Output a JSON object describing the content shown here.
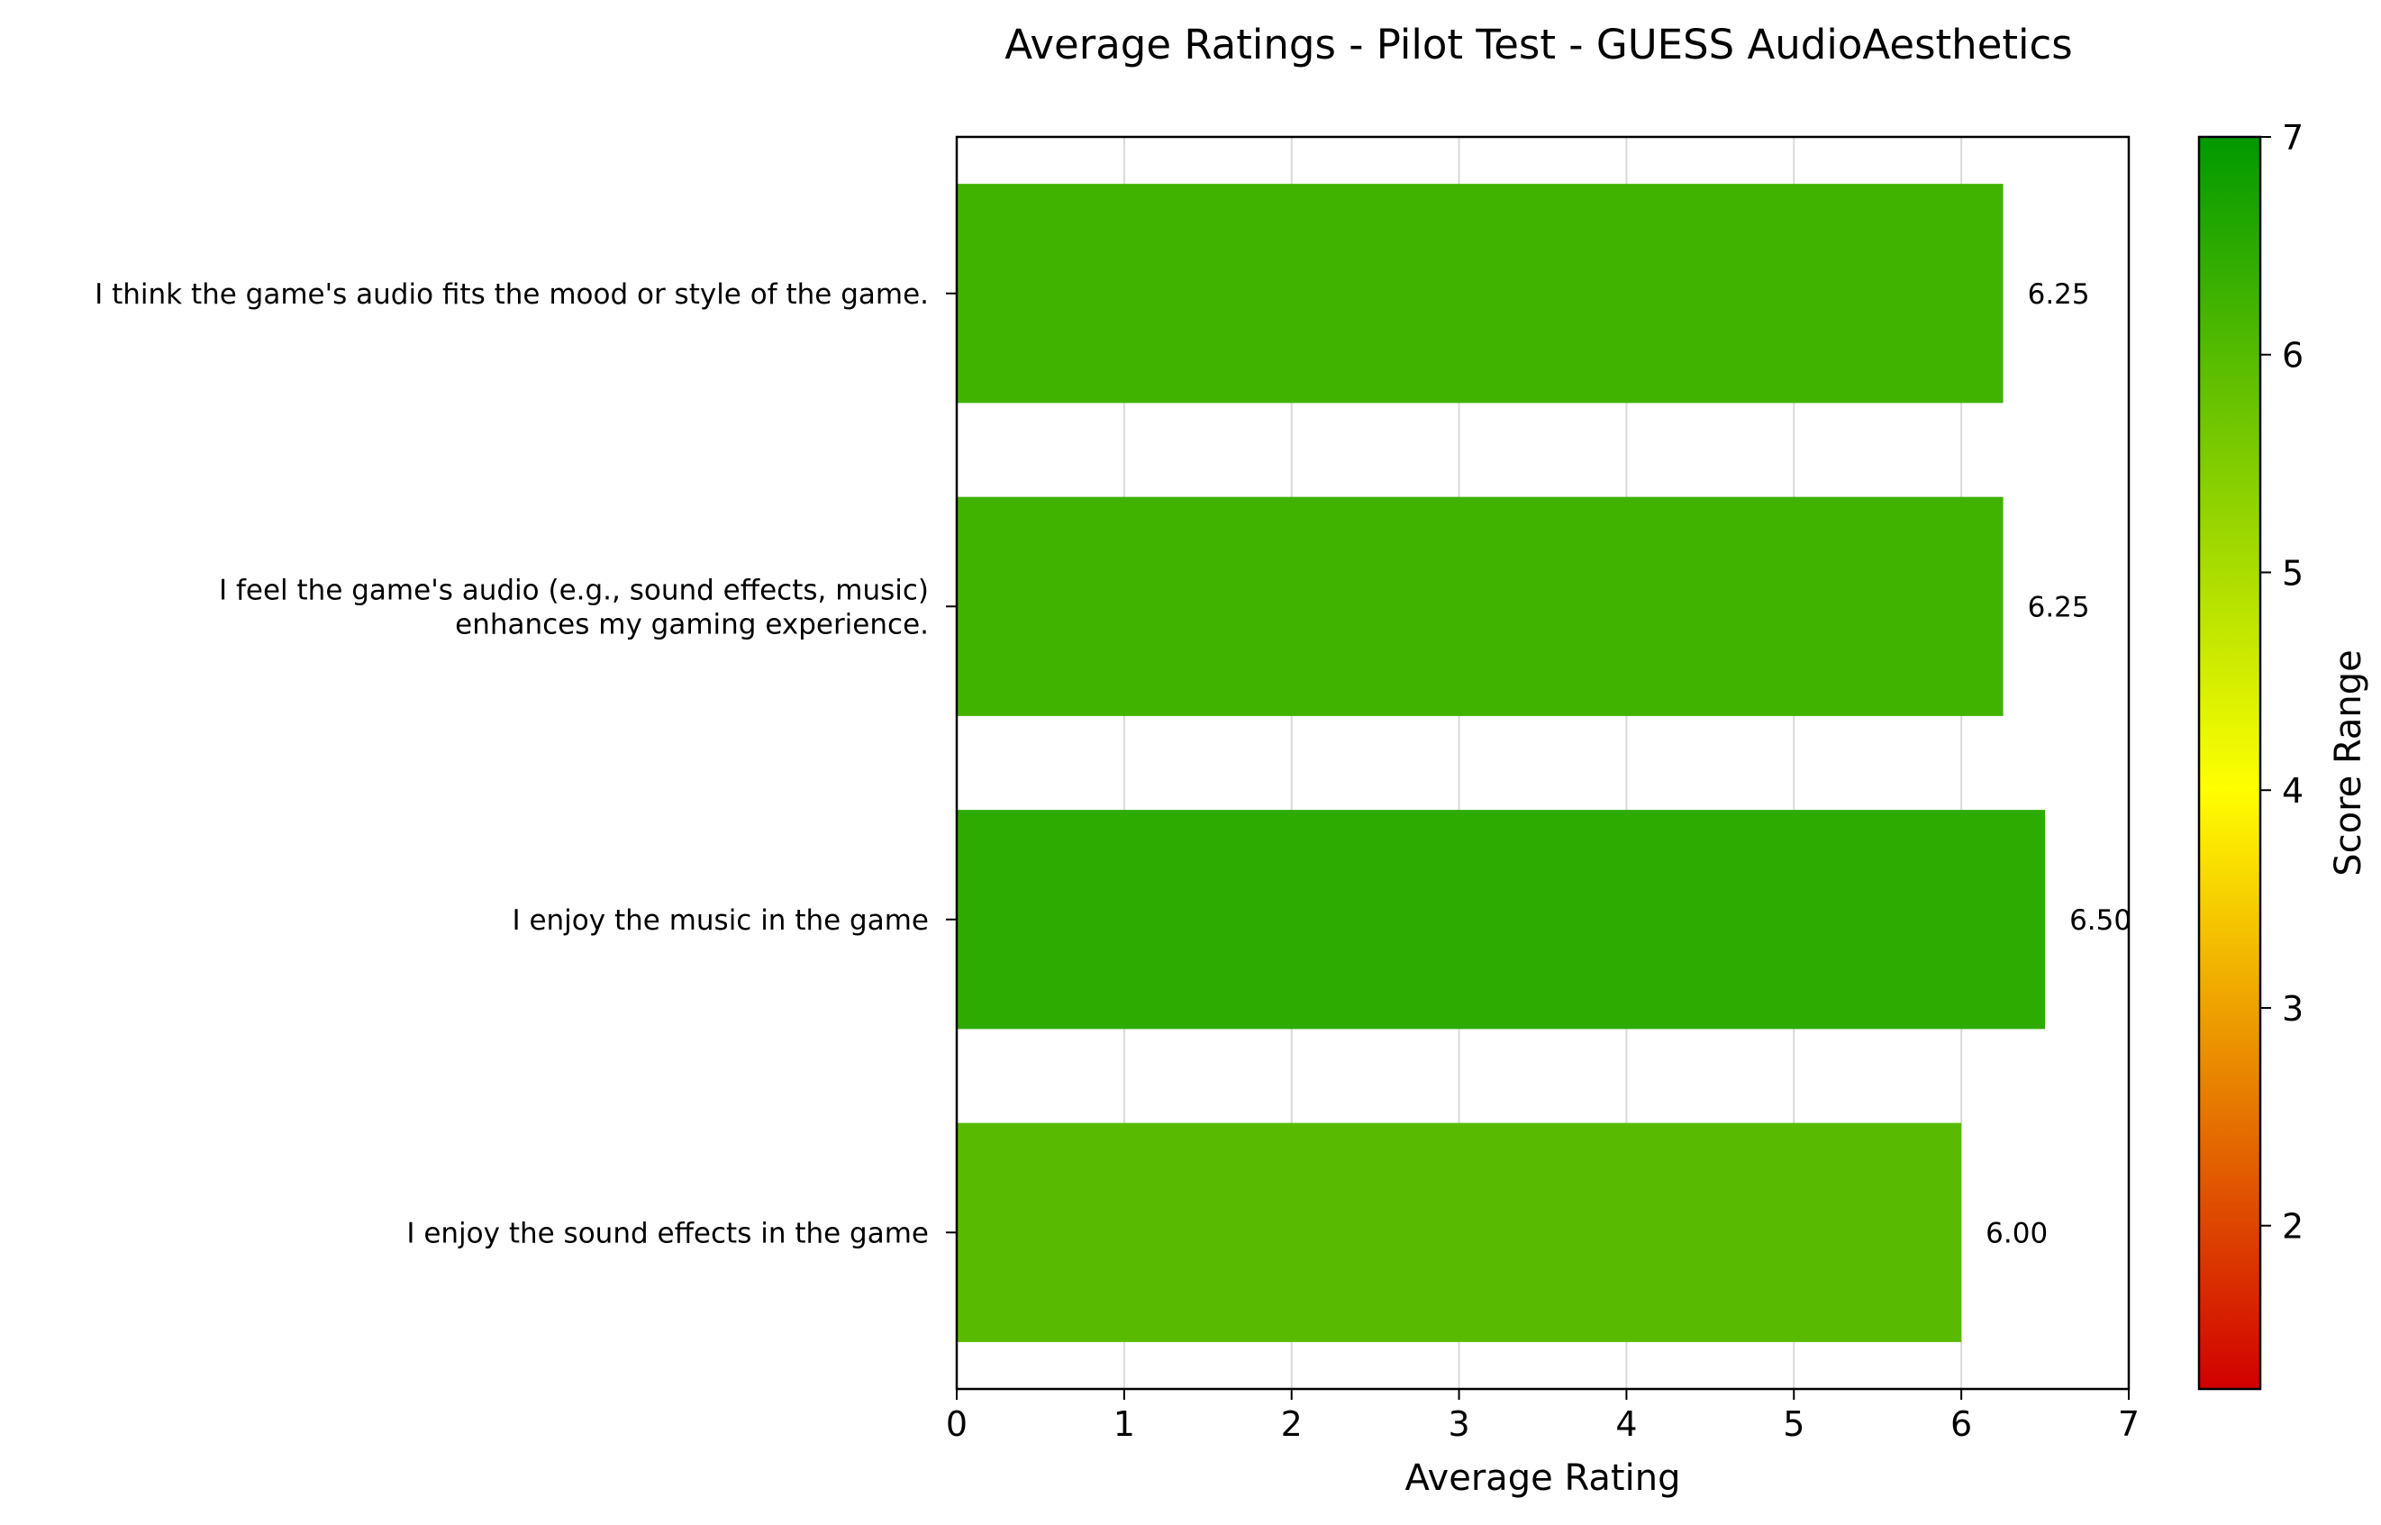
{
  "chart_data": {
    "type": "bar",
    "orientation": "horizontal",
    "title": "Average Ratings - Pilot Test - GUESS AudioAesthetics",
    "xlabel": "Average Rating",
    "ylabel": "",
    "xlim": [
      0,
      7
    ],
    "x_ticks": [
      "0",
      "1",
      "2",
      "3",
      "4",
      "5",
      "6",
      "7"
    ],
    "grid": "vertical",
    "categories": [
      [
        "I think the game's audio fits the mood or style of the game."
      ],
      [
        "I feel the game's audio (e.g., sound effects, music)",
        "enhances my gaming experience."
      ],
      [
        "I enjoy the music in the game"
      ],
      [
        "I enjoy the sound effects in the game"
      ]
    ],
    "values": [
      6.25,
      6.25,
      6.5,
      6.0
    ],
    "value_labels": [
      "6.25",
      "6.25",
      "6.50",
      "6.00"
    ],
    "bar_colors": [
      "#40b200",
      "#40b200",
      "#2dab00",
      "#58bb00"
    ],
    "colorbar": {
      "label": "Score Range",
      "range": [
        1.25,
        7
      ],
      "ticks": [
        "2",
        "3",
        "4",
        "5",
        "6",
        "7"
      ],
      "colors": [
        "#d10000",
        "#ffff00",
        "#009900"
      ]
    }
  }
}
